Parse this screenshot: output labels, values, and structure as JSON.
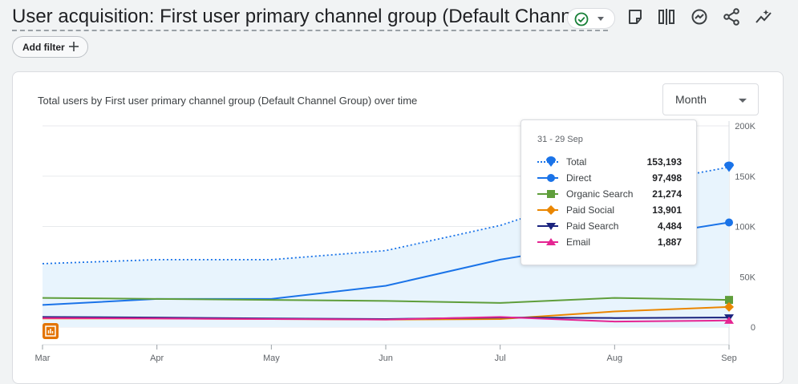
{
  "header": {
    "title": "User acquisition: First user primary channel group (Default Channel ...",
    "add_filter_label": "Add filter"
  },
  "card": {
    "month_select_label": "Month"
  },
  "tooltip": {
    "date": "31 - 29 Sep",
    "rows": [
      {
        "name": "Total",
        "value": "153,193"
      },
      {
        "name": "Direct",
        "value": "97,498"
      },
      {
        "name": "Organic Search",
        "value": "21,274"
      },
      {
        "name": "Paid Social",
        "value": "13,901"
      },
      {
        "name": "Paid Search",
        "value": "4,484"
      },
      {
        "name": "Email",
        "value": "1,887"
      }
    ]
  },
  "chart_data": {
    "type": "line",
    "title": "Total users by First user primary channel group (Default Channel Group) over time",
    "x": [
      "Mar",
      "Apr",
      "May",
      "Jun",
      "Jul",
      "Aug",
      "Sep"
    ],
    "ylim": [
      0,
      200000
    ],
    "yticks": [
      0,
      50000,
      100000,
      150000,
      200000
    ],
    "ytick_labels": [
      "0",
      "50K",
      "100K",
      "150K",
      "200K"
    ],
    "y_axis_position": "right",
    "grid": true,
    "series": [
      {
        "name": "Total",
        "color": "#1a73e8",
        "style": "dotted",
        "area": true,
        "marker": "pin",
        "values": [
          63000,
          67000,
          67000,
          76000,
          101000,
          138000,
          159000
        ]
      },
      {
        "name": "Direct",
        "color": "#1a73e8",
        "marker": "circle",
        "values": [
          22000,
          28000,
          28000,
          41000,
          67000,
          86000,
          104000
        ]
      },
      {
        "name": "Organic Search",
        "color": "#5f9e3b",
        "marker": "square",
        "values": [
          29000,
          28000,
          27000,
          26000,
          24000,
          29000,
          27000
        ]
      },
      {
        "name": "Paid Social",
        "color": "#ea8600",
        "marker": "diamond",
        "values": [
          8500,
          8500,
          8000,
          7500,
          8000,
          15500,
          20000
        ]
      },
      {
        "name": "Paid Search",
        "color": "#1a237e",
        "marker": "triangle-down",
        "values": [
          10000,
          9500,
          8500,
          8000,
          9500,
          9000,
          9500
        ]
      },
      {
        "name": "Email",
        "color": "#e52592",
        "marker": "triangle-up",
        "values": [
          9000,
          8500,
          8000,
          7500,
          10000,
          5500,
          6500
        ]
      }
    ]
  },
  "icons": {
    "status": "check-circle-icon",
    "toolbar": [
      "note-icon",
      "compare-icon",
      "insights-icon",
      "share-icon",
      "trend-icon"
    ],
    "annotation": "annotation-icon"
  }
}
